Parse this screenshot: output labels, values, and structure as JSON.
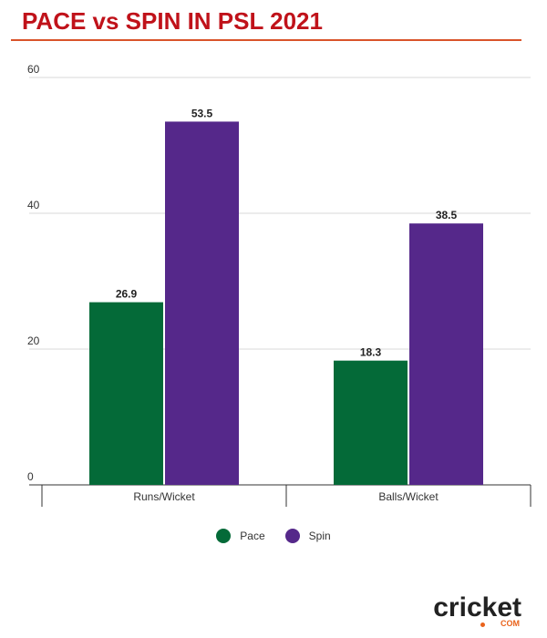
{
  "header": {
    "title": "PACE vs SPIN IN PSL 2021"
  },
  "brand": {
    "logo_text": "cricket",
    "logo_sub": "COM"
  },
  "colors": {
    "pace": "#046a38",
    "spin": "#55288a",
    "title": "#c0121a",
    "rule": "#d9542a"
  },
  "chart_data": {
    "type": "bar",
    "title": "PACE vs SPIN IN PSL 2021",
    "xlabel": "",
    "ylabel": "",
    "ylim": [
      0,
      60
    ],
    "yticks": [
      0,
      20,
      40,
      60
    ],
    "grid": true,
    "legend": "bottom-center",
    "categories": [
      "Runs/Wicket",
      "Balls/Wicket"
    ],
    "series": [
      {
        "name": "Pace",
        "values": [
          26.9,
          18.3
        ]
      },
      {
        "name": "Spin",
        "values": [
          53.5,
          38.5
        ]
      }
    ]
  }
}
